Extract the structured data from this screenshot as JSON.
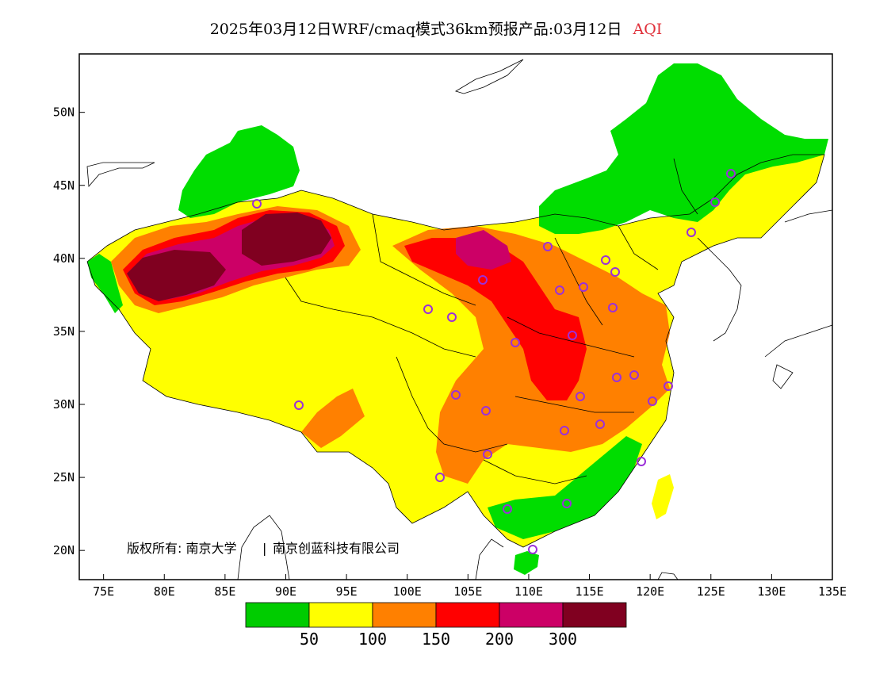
{
  "title": {
    "text": "2025年03月12日WRF/cmaq模式36km预报产品:03月12日",
    "variable": "AQI",
    "variable_color": "#e0303a"
  },
  "map": {
    "lon_range": [
      73,
      135
    ],
    "lat_range": [
      18,
      54
    ],
    "x_ticks": [
      "75E",
      "80E",
      "85E",
      "90E",
      "95E",
      "100E",
      "105E",
      "110E",
      "115E",
      "120E",
      "125E",
      "130E",
      "135E"
    ],
    "y_ticks": [
      "20N",
      "25N",
      "30N",
      "35N",
      "40N",
      "45N",
      "50N"
    ],
    "copyright": "版权所有: 南京大学",
    "copyright_sep": "|",
    "copyright2": "南京创蓝科技有限公司",
    "station_marker_color": "#9b30d9"
  },
  "legend": {
    "bins": [
      {
        "color": "#00cc00"
      },
      {
        "color": "#ffff00"
      },
      {
        "color": "#ff8000"
      },
      {
        "color": "#ff0000"
      },
      {
        "color": "#cc0066"
      },
      {
        "color": "#800020"
      }
    ],
    "labels": [
      "50",
      "100",
      "150",
      "200",
      "300"
    ]
  }
}
